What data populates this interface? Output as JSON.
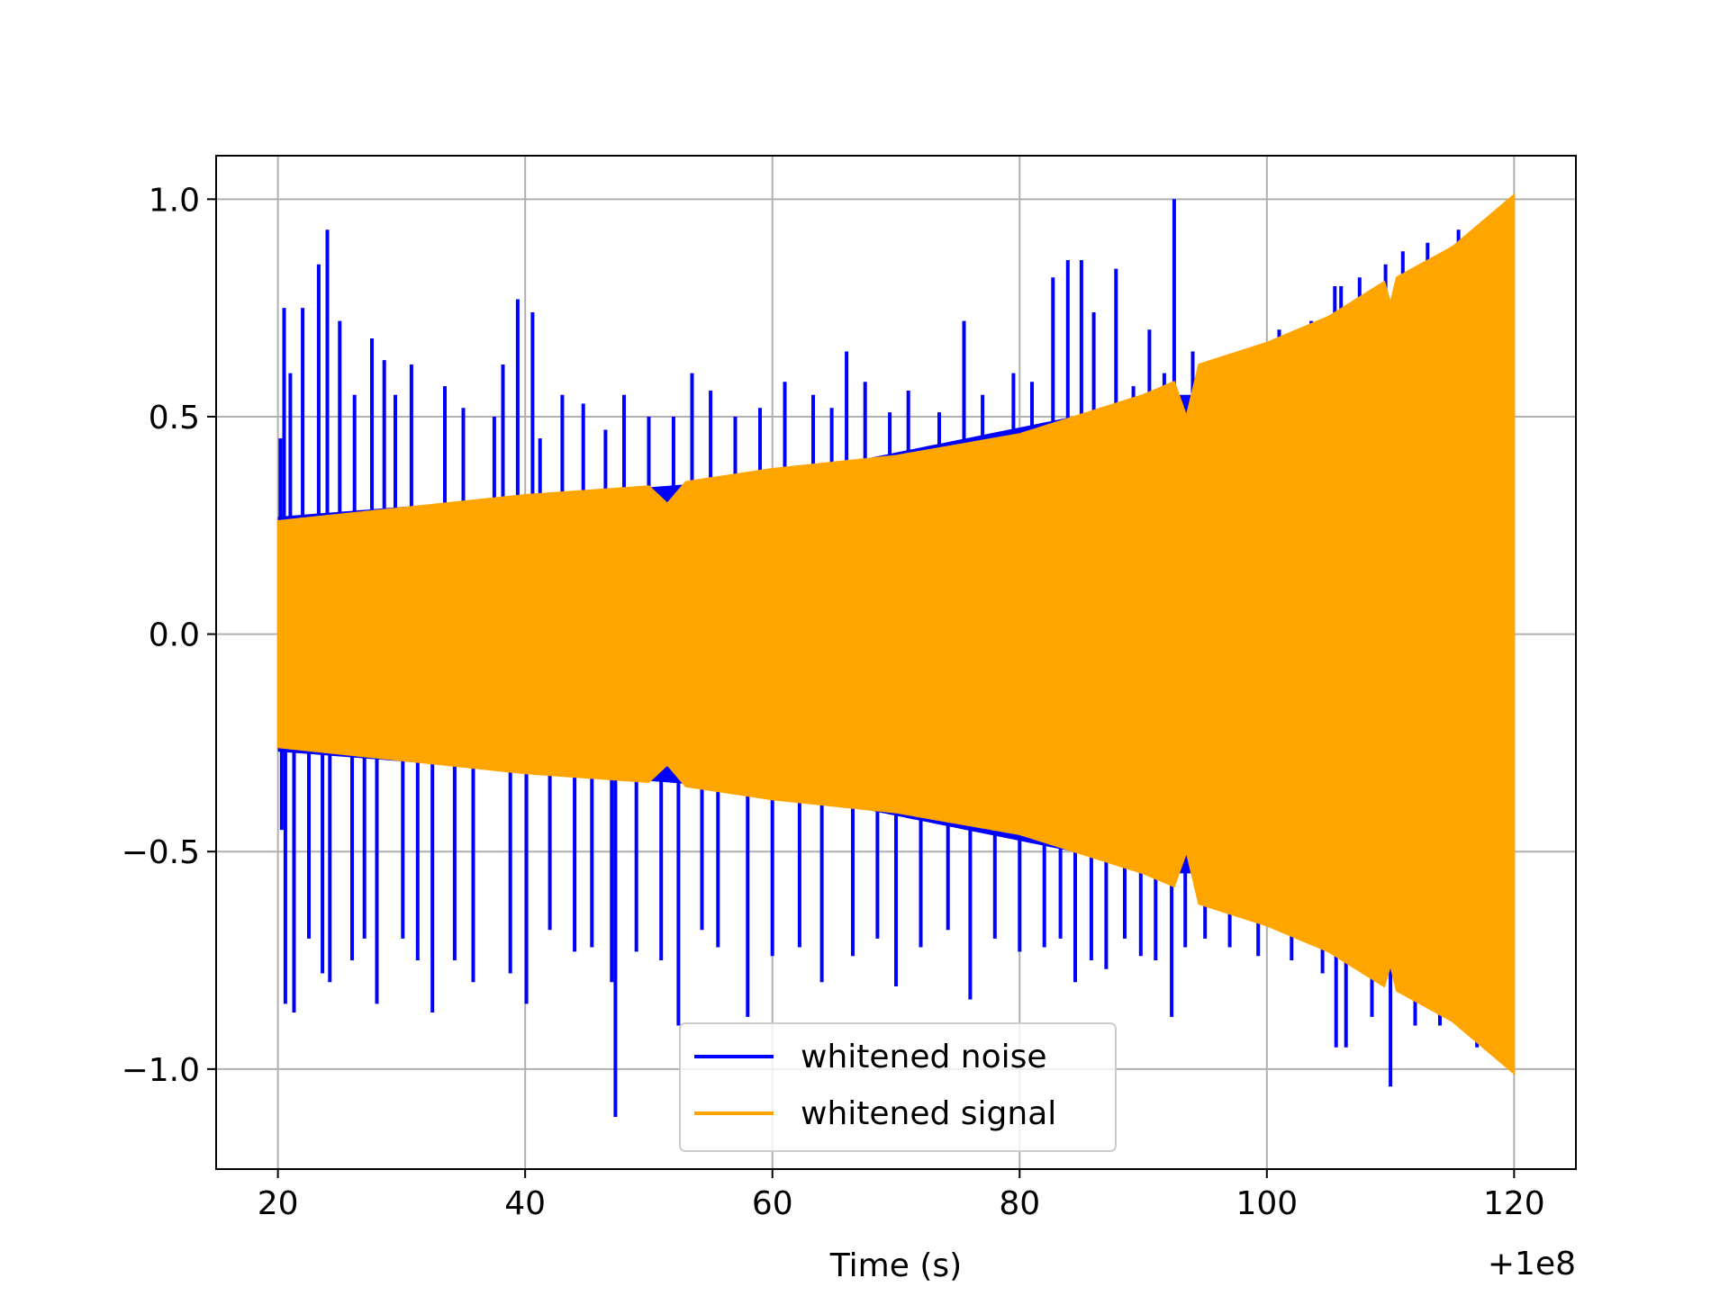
{
  "chart_data": {
    "type": "line",
    "title": "",
    "xlabel": "Time (s)",
    "ylabel": "",
    "x_offset_label": "+1e8",
    "xlim": [
      15,
      125
    ],
    "ylim": [
      -1.23,
      1.1
    ],
    "x_ticks": [
      20,
      40,
      60,
      80,
      100,
      120
    ],
    "y_ticks": [
      1.0,
      0.5,
      0.0,
      -0.5,
      -1.0
    ],
    "x_tick_labels": [
      "20",
      "40",
      "60",
      "80",
      "100",
      "120"
    ],
    "y_tick_labels": [
      "1.0",
      "0.5",
      "0.0",
      "−0.5",
      "−1.0"
    ],
    "grid": true,
    "legend_position": "lower center",
    "series": [
      {
        "name": "whitened noise",
        "color": "#0000ff",
        "x_range": [
          20,
          120
        ],
        "baseline_envelope": [
          [
            20,
            0.27
          ],
          [
            60,
            0.36
          ],
          [
            93,
            0.55
          ],
          [
            120,
            0.55
          ]
        ],
        "spikes": [
          [
            20.2,
            0.45
          ],
          [
            20.3,
            -0.45
          ],
          [
            20.5,
            0.75
          ],
          [
            20.6,
            -0.85
          ],
          [
            21.0,
            0.6
          ],
          [
            21.3,
            -0.87
          ],
          [
            22.0,
            0.75
          ],
          [
            22.5,
            -0.7
          ],
          [
            23.3,
            0.85
          ],
          [
            23.6,
            -0.78
          ],
          [
            24.0,
            0.93
          ],
          [
            24.2,
            -0.8
          ],
          [
            25.0,
            0.72
          ],
          [
            26.0,
            -0.75
          ],
          [
            26.2,
            0.55
          ],
          [
            27.0,
            -0.7
          ],
          [
            27.6,
            0.68
          ],
          [
            28.0,
            -0.85
          ],
          [
            28.6,
            0.63
          ],
          [
            29.5,
            0.55
          ],
          [
            30.1,
            -0.7
          ],
          [
            30.8,
            0.62
          ],
          [
            31.3,
            -0.75
          ],
          [
            32.5,
            -0.87
          ],
          [
            33.5,
            0.57
          ],
          [
            34.3,
            -0.75
          ],
          [
            35.0,
            0.52
          ],
          [
            35.8,
            -0.8
          ],
          [
            37.5,
            0.5
          ],
          [
            38.2,
            0.62
          ],
          [
            38.8,
            -0.78
          ],
          [
            39.4,
            0.77
          ],
          [
            40.1,
            -0.85
          ],
          [
            40.6,
            0.74
          ],
          [
            41.2,
            0.45
          ],
          [
            42.0,
            -0.68
          ],
          [
            43.0,
            0.55
          ],
          [
            44.0,
            -0.73
          ],
          [
            44.7,
            0.53
          ],
          [
            45.4,
            -0.72
          ],
          [
            46.5,
            0.47
          ],
          [
            47.0,
            -0.8
          ],
          [
            47.3,
            -1.11
          ],
          [
            48.0,
            0.55
          ],
          [
            49.0,
            -0.73
          ],
          [
            50.0,
            0.5
          ],
          [
            51.0,
            -0.75
          ],
          [
            52.0,
            0.5
          ],
          [
            52.4,
            -0.9
          ],
          [
            53.5,
            0.6
          ],
          [
            54.3,
            -0.68
          ],
          [
            55.0,
            0.56
          ],
          [
            55.6,
            -0.72
          ],
          [
            57.0,
            0.5
          ],
          [
            58.0,
            -0.88
          ],
          [
            59.0,
            0.52
          ],
          [
            60.0,
            -0.74
          ],
          [
            61.0,
            0.58
          ],
          [
            62.2,
            -0.72
          ],
          [
            63.3,
            0.55
          ],
          [
            64.0,
            -0.8
          ],
          [
            64.8,
            0.52
          ],
          [
            66.0,
            0.65
          ],
          [
            66.5,
            -0.74
          ],
          [
            67.5,
            0.58
          ],
          [
            68.5,
            -0.7
          ],
          [
            69.5,
            0.51
          ],
          [
            70.0,
            -0.81
          ],
          [
            71.0,
            0.56
          ],
          [
            72.0,
            -0.72
          ],
          [
            73.5,
            0.51
          ],
          [
            74.2,
            -0.68
          ],
          [
            75.5,
            0.72
          ],
          [
            76.0,
            -0.84
          ],
          [
            77.0,
            0.55
          ],
          [
            78.0,
            -0.7
          ],
          [
            79.5,
            0.6
          ],
          [
            80.0,
            -0.73
          ],
          [
            81.0,
            0.58
          ],
          [
            82.0,
            -0.72
          ],
          [
            82.7,
            0.82
          ],
          [
            83.3,
            -0.7
          ],
          [
            83.9,
            0.86
          ],
          [
            84.5,
            -0.8
          ],
          [
            85.0,
            0.86
          ],
          [
            85.8,
            -0.75
          ],
          [
            86.0,
            0.74
          ],
          [
            87.0,
            -0.77
          ],
          [
            87.8,
            0.84
          ],
          [
            88.5,
            -0.7
          ],
          [
            89.2,
            0.57
          ],
          [
            89.8,
            -0.74
          ],
          [
            90.5,
            0.7
          ],
          [
            91.0,
            -0.75
          ],
          [
            91.7,
            0.6
          ],
          [
            92.3,
            -0.88
          ],
          [
            92.5,
            1.0
          ],
          [
            93.4,
            -0.72
          ],
          [
            94.0,
            0.65
          ],
          [
            95.0,
            -0.7
          ],
          [
            96.0,
            0.62
          ],
          [
            97.0,
            -0.72
          ],
          [
            98.0,
            0.65
          ],
          [
            99.3,
            -0.74
          ],
          [
            101.0,
            0.7
          ],
          [
            102.0,
            -0.75
          ],
          [
            103.6,
            0.72
          ],
          [
            104.5,
            -0.78
          ],
          [
            105.5,
            0.8
          ],
          [
            105.6,
            -0.95
          ],
          [
            106.0,
            0.8
          ],
          [
            106.4,
            -0.95
          ],
          [
            107.5,
            0.82
          ],
          [
            108.5,
            -0.88
          ],
          [
            109.6,
            0.85
          ],
          [
            110.0,
            -1.04
          ],
          [
            111.0,
            0.88
          ],
          [
            112.0,
            -0.9
          ],
          [
            113.0,
            0.9
          ],
          [
            114.0,
            -0.9
          ],
          [
            115.5,
            0.93
          ],
          [
            117.0,
            -0.95
          ],
          [
            118.5,
            0.97
          ],
          [
            119.5,
            -0.98
          ]
        ]
      },
      {
        "name": "whitened signal",
        "color": "#ffa500",
        "x_range": [
          20,
          120
        ],
        "envelope": [
          [
            20,
            0.26
          ],
          [
            30,
            0.29
          ],
          [
            40,
            0.32
          ],
          [
            50,
            0.34
          ],
          [
            51.5,
            0.3
          ],
          [
            53,
            0.35
          ],
          [
            60,
            0.38
          ],
          [
            70,
            0.41
          ],
          [
            80,
            0.46
          ],
          [
            90,
            0.55
          ],
          [
            92.5,
            0.58
          ],
          [
            93.5,
            0.5
          ],
          [
            94.5,
            0.62
          ],
          [
            100,
            0.67
          ],
          [
            105,
            0.73
          ],
          [
            109.5,
            0.81
          ],
          [
            110,
            0.76
          ],
          [
            110.5,
            0.82
          ],
          [
            115,
            0.89
          ],
          [
            120,
            1.01
          ]
        ]
      }
    ]
  }
}
